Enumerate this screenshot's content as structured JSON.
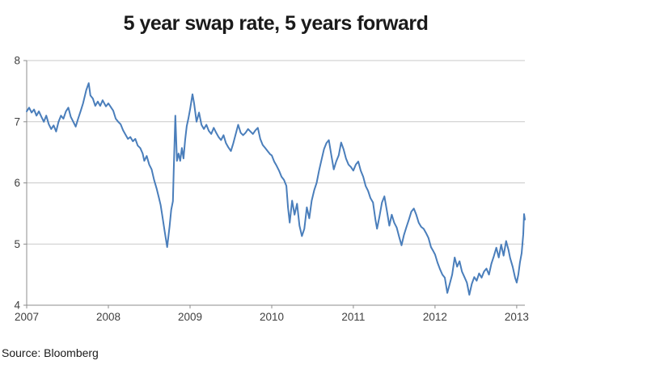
{
  "chart_data": {
    "type": "line",
    "title": "5 year swap rate, 5 years forward",
    "source_note": "Source: Bloomberg",
    "xlabel": "",
    "ylabel": "",
    "xlim": [
      2007,
      2013.1
    ],
    "ylim": [
      4,
      8
    ],
    "x_ticks": [
      2007,
      2008,
      2009,
      2010,
      2011,
      2012,
      2013
    ],
    "y_ticks": [
      4,
      5,
      6,
      7,
      8
    ],
    "grid": "horizontal",
    "legend": "none",
    "colors": {
      "line": "#4a7ebb",
      "gridline": "#c9c9c9",
      "axis": "#8c8c8c",
      "tick_label": "#3f3f3f",
      "title": "#1a1a1a",
      "source": "#1a1a1a"
    },
    "series": [
      {
        "color": "#4a7ebb",
        "stroke_width": 2,
        "points": [
          [
            2007.0,
            7.17
          ],
          [
            2007.03,
            7.23
          ],
          [
            2007.06,
            7.15
          ],
          [
            2007.09,
            7.2
          ],
          [
            2007.12,
            7.1
          ],
          [
            2007.15,
            7.17
          ],
          [
            2007.18,
            7.08
          ],
          [
            2007.21,
            7.0
          ],
          [
            2007.24,
            7.1
          ],
          [
            2007.27,
            6.96
          ],
          [
            2007.3,
            6.88
          ],
          [
            2007.33,
            6.94
          ],
          [
            2007.36,
            6.84
          ],
          [
            2007.39,
            7.0
          ],
          [
            2007.42,
            7.1
          ],
          [
            2007.45,
            7.05
          ],
          [
            2007.48,
            7.17
          ],
          [
            2007.51,
            7.23
          ],
          [
            2007.54,
            7.08
          ],
          [
            2007.57,
            7.0
          ],
          [
            2007.6,
            6.92
          ],
          [
            2007.63,
            7.05
          ],
          [
            2007.66,
            7.17
          ],
          [
            2007.69,
            7.3
          ],
          [
            2007.73,
            7.52
          ],
          [
            2007.76,
            7.63
          ],
          [
            2007.78,
            7.43
          ],
          [
            2007.81,
            7.38
          ],
          [
            2007.84,
            7.26
          ],
          [
            2007.87,
            7.33
          ],
          [
            2007.9,
            7.26
          ],
          [
            2007.93,
            7.35
          ],
          [
            2007.97,
            7.25
          ],
          [
            2008.0,
            7.3
          ],
          [
            2008.03,
            7.24
          ],
          [
            2008.06,
            7.18
          ],
          [
            2008.09,
            7.05
          ],
          [
            2008.12,
            7.0
          ],
          [
            2008.15,
            6.96
          ],
          [
            2008.18,
            6.86
          ],
          [
            2008.21,
            6.79
          ],
          [
            2008.24,
            6.72
          ],
          [
            2008.27,
            6.75
          ],
          [
            2008.3,
            6.68
          ],
          [
            2008.33,
            6.72
          ],
          [
            2008.36,
            6.61
          ],
          [
            2008.39,
            6.57
          ],
          [
            2008.42,
            6.48
          ],
          [
            2008.44,
            6.36
          ],
          [
            2008.47,
            6.44
          ],
          [
            2008.5,
            6.3
          ],
          [
            2008.53,
            6.22
          ],
          [
            2008.56,
            6.05
          ],
          [
            2008.59,
            5.91
          ],
          [
            2008.62,
            5.75
          ],
          [
            2008.64,
            5.64
          ],
          [
            2008.66,
            5.47
          ],
          [
            2008.69,
            5.2
          ],
          [
            2008.72,
            4.95
          ],
          [
            2008.75,
            5.29
          ],
          [
            2008.77,
            5.56
          ],
          [
            2008.79,
            5.7
          ],
          [
            2008.8,
            6.2
          ],
          [
            2008.82,
            7.1
          ],
          [
            2008.84,
            6.36
          ],
          [
            2008.86,
            6.48
          ],
          [
            2008.88,
            6.36
          ],
          [
            2008.9,
            6.57
          ],
          [
            2008.92,
            6.4
          ],
          [
            2008.94,
            6.7
          ],
          [
            2008.96,
            6.93
          ],
          [
            2008.98,
            7.05
          ],
          [
            2009.0,
            7.2
          ],
          [
            2009.03,
            7.45
          ],
          [
            2009.05,
            7.3
          ],
          [
            2009.08,
            7.0
          ],
          [
            2009.11,
            7.15
          ],
          [
            2009.14,
            6.95
          ],
          [
            2009.17,
            6.88
          ],
          [
            2009.2,
            6.95
          ],
          [
            2009.23,
            6.85
          ],
          [
            2009.26,
            6.8
          ],
          [
            2009.29,
            6.9
          ],
          [
            2009.32,
            6.82
          ],
          [
            2009.35,
            6.75
          ],
          [
            2009.38,
            6.7
          ],
          [
            2009.41,
            6.78
          ],
          [
            2009.44,
            6.65
          ],
          [
            2009.47,
            6.58
          ],
          [
            2009.5,
            6.52
          ],
          [
            2009.53,
            6.65
          ],
          [
            2009.56,
            6.8
          ],
          [
            2009.59,
            6.95
          ],
          [
            2009.62,
            6.82
          ],
          [
            2009.65,
            6.78
          ],
          [
            2009.68,
            6.82
          ],
          [
            2009.71,
            6.88
          ],
          [
            2009.74,
            6.84
          ],
          [
            2009.77,
            6.8
          ],
          [
            2009.8,
            6.86
          ],
          [
            2009.83,
            6.9
          ],
          [
            2009.86,
            6.72
          ],
          [
            2009.89,
            6.62
          ],
          [
            2009.92,
            6.57
          ],
          [
            2009.95,
            6.52
          ],
          [
            2009.98,
            6.47
          ],
          [
            2010.0,
            6.45
          ],
          [
            2010.03,
            6.35
          ],
          [
            2010.06,
            6.28
          ],
          [
            2010.09,
            6.2
          ],
          [
            2010.12,
            6.1
          ],
          [
            2010.15,
            6.05
          ],
          [
            2010.18,
            5.95
          ],
          [
            2010.2,
            5.6
          ],
          [
            2010.22,
            5.35
          ],
          [
            2010.25,
            5.71
          ],
          [
            2010.28,
            5.48
          ],
          [
            2010.31,
            5.66
          ],
          [
            2010.34,
            5.3
          ],
          [
            2010.37,
            5.13
          ],
          [
            2010.4,
            5.25
          ],
          [
            2010.43,
            5.6
          ],
          [
            2010.46,
            5.42
          ],
          [
            2010.49,
            5.71
          ],
          [
            2010.52,
            5.88
          ],
          [
            2010.55,
            6.0
          ],
          [
            2010.58,
            6.2
          ],
          [
            2010.61,
            6.38
          ],
          [
            2010.64,
            6.55
          ],
          [
            2010.67,
            6.65
          ],
          [
            2010.7,
            6.7
          ],
          [
            2010.73,
            6.45
          ],
          [
            2010.76,
            6.22
          ],
          [
            2010.79,
            6.35
          ],
          [
            2010.82,
            6.45
          ],
          [
            2010.85,
            6.66
          ],
          [
            2010.88,
            6.55
          ],
          [
            2010.91,
            6.4
          ],
          [
            2010.94,
            6.3
          ],
          [
            2010.97,
            6.26
          ],
          [
            2011.0,
            6.2
          ],
          [
            2011.03,
            6.3
          ],
          [
            2011.06,
            6.35
          ],
          [
            2011.09,
            6.2
          ],
          [
            2011.12,
            6.1
          ],
          [
            2011.15,
            5.95
          ],
          [
            2011.18,
            5.87
          ],
          [
            2011.21,
            5.75
          ],
          [
            2011.24,
            5.68
          ],
          [
            2011.27,
            5.4
          ],
          [
            2011.29,
            5.25
          ],
          [
            2011.32,
            5.45
          ],
          [
            2011.35,
            5.68
          ],
          [
            2011.38,
            5.78
          ],
          [
            2011.41,
            5.55
          ],
          [
            2011.44,
            5.3
          ],
          [
            2011.47,
            5.48
          ],
          [
            2011.5,
            5.35
          ],
          [
            2011.53,
            5.27
          ],
          [
            2011.56,
            5.12
          ],
          [
            2011.59,
            4.98
          ],
          [
            2011.62,
            5.15
          ],
          [
            2011.65,
            5.28
          ],
          [
            2011.68,
            5.4
          ],
          [
            2011.71,
            5.53
          ],
          [
            2011.74,
            5.58
          ],
          [
            2011.77,
            5.48
          ],
          [
            2011.8,
            5.35
          ],
          [
            2011.83,
            5.28
          ],
          [
            2011.86,
            5.25
          ],
          [
            2011.89,
            5.18
          ],
          [
            2011.92,
            5.1
          ],
          [
            2011.95,
            4.95
          ],
          [
            2011.98,
            4.88
          ],
          [
            2012.0,
            4.83
          ],
          [
            2012.03,
            4.7
          ],
          [
            2012.06,
            4.59
          ],
          [
            2012.09,
            4.5
          ],
          [
            2012.12,
            4.45
          ],
          [
            2012.15,
            4.2
          ],
          [
            2012.18,
            4.35
          ],
          [
            2012.21,
            4.5
          ],
          [
            2012.24,
            4.78
          ],
          [
            2012.27,
            4.63
          ],
          [
            2012.3,
            4.72
          ],
          [
            2012.33,
            4.55
          ],
          [
            2012.36,
            4.46
          ],
          [
            2012.39,
            4.37
          ],
          [
            2012.42,
            4.17
          ],
          [
            2012.45,
            4.35
          ],
          [
            2012.48,
            4.46
          ],
          [
            2012.51,
            4.4
          ],
          [
            2012.54,
            4.52
          ],
          [
            2012.57,
            4.45
          ],
          [
            2012.6,
            4.55
          ],
          [
            2012.63,
            4.6
          ],
          [
            2012.66,
            4.5
          ],
          [
            2012.69,
            4.68
          ],
          [
            2012.72,
            4.8
          ],
          [
            2012.75,
            4.94
          ],
          [
            2012.78,
            4.78
          ],
          [
            2012.81,
            4.99
          ],
          [
            2012.84,
            4.81
          ],
          [
            2012.87,
            5.05
          ],
          [
            2012.9,
            4.9
          ],
          [
            2012.92,
            4.77
          ],
          [
            2012.95,
            4.63
          ],
          [
            2012.98,
            4.45
          ],
          [
            2013.0,
            4.37
          ],
          [
            2013.02,
            4.5
          ],
          [
            2013.04,
            4.7
          ],
          [
            2013.06,
            4.85
          ],
          [
            2013.08,
            5.16
          ],
          [
            2013.09,
            5.49
          ],
          [
            2013.1,
            5.4
          ]
        ]
      }
    ]
  }
}
